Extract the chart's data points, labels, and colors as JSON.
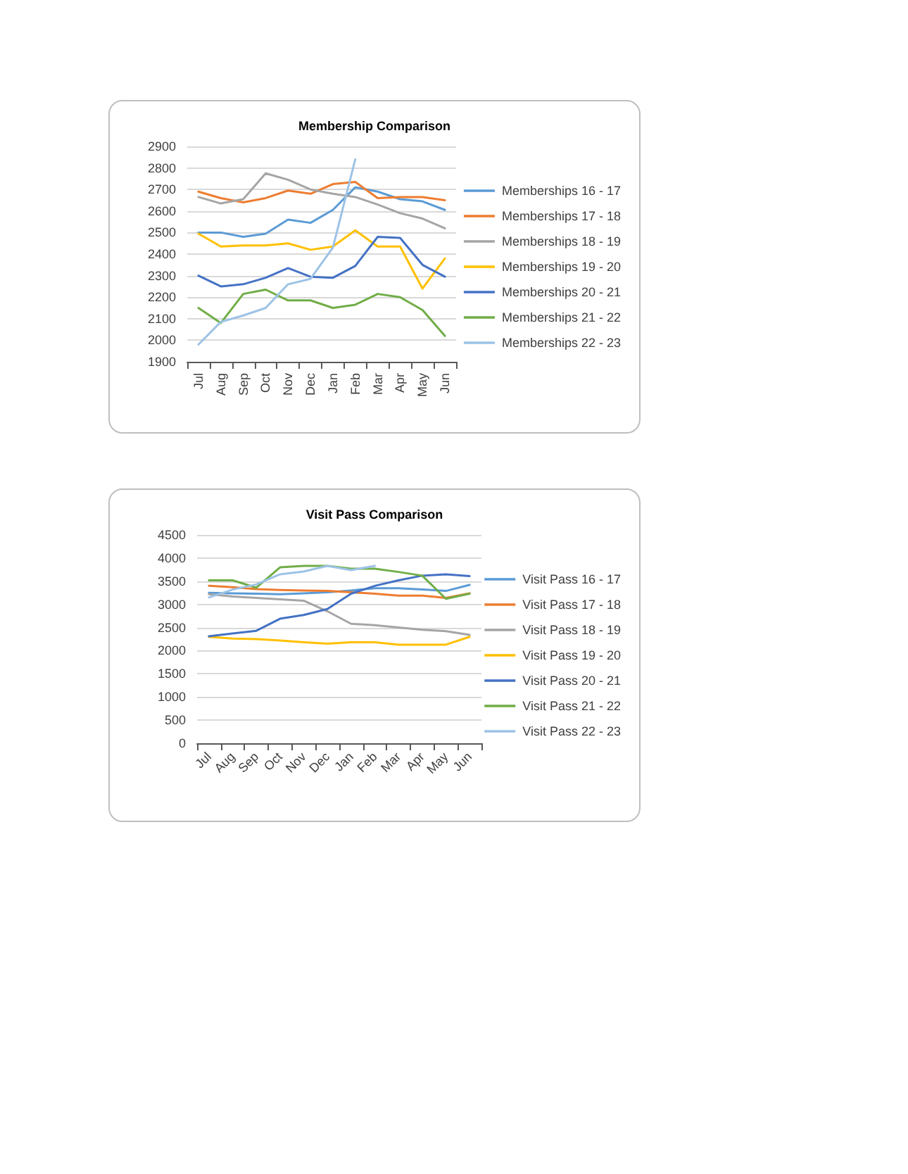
{
  "chart_data": [
    {
      "type": "line",
      "title": "Membership Comparison",
      "categories": [
        "Jul",
        "Aug",
        "Sep",
        "Oct",
        "Nov",
        "Dec",
        "Jan",
        "Feb",
        "Mar",
        "Apr",
        "May",
        "Jun"
      ],
      "ylim": [
        1900,
        2900
      ],
      "yticks": [
        1900,
        2000,
        2100,
        2200,
        2300,
        2400,
        2500,
        2600,
        2700,
        2800,
        2900
      ],
      "grid": "y",
      "legend": "right",
      "marker": "none",
      "series": [
        {
          "name": "Memberships 16 - 17",
          "color": "#5b9bd5",
          "values": [
            2500,
            2500,
            2480,
            2495,
            2560,
            2545,
            2605,
            2710,
            2690,
            2655,
            2645,
            2605
          ]
        },
        {
          "name": "Memberships 17 - 18",
          "color": "#ed7d31",
          "values": [
            2690,
            2660,
            2640,
            2660,
            2695,
            2680,
            2725,
            2735,
            2660,
            2665,
            2665,
            2650
          ]
        },
        {
          "name": "Memberships 18 - 19",
          "color": "#a5a5a5",
          "values": [
            2665,
            2635,
            2655,
            2775,
            2745,
            2700,
            2680,
            2665,
            2630,
            2590,
            2565,
            2520
          ]
        },
        {
          "name": "Memberships 19 - 20",
          "color": "#ffc000",
          "values": [
            2495,
            2435,
            2440,
            2440,
            2450,
            2420,
            2435,
            2510,
            2435,
            2435,
            2240,
            2380
          ]
        },
        {
          "name": "Memberships 20 - 21",
          "color": "#4472c4",
          "values": [
            2300,
            2250,
            2260,
            2290,
            2335,
            2295,
            2290,
            2345,
            2480,
            2475,
            2350,
            2295
          ]
        },
        {
          "name": "Memberships 21 - 22",
          "color": "#70ad47",
          "values": [
            2150,
            2080,
            2215,
            2235,
            2185,
            2185,
            2150,
            2165,
            2215,
            2200,
            2140,
            2020
          ]
        },
        {
          "name": "Memberships 22 - 23",
          "color": "#9dc3e6",
          "values": [
            1980,
            2085,
            2115,
            2150,
            2260,
            2285,
            2430,
            2840,
            null,
            null,
            null,
            null
          ]
        }
      ]
    },
    {
      "type": "line",
      "title": "Visit Pass Comparison",
      "categories": [
        "Jul",
        "Aug",
        "Sep",
        "Oct",
        "Nov",
        "Dec",
        "Jan",
        "Feb",
        "Mar",
        "Apr",
        "May",
        "Jun"
      ],
      "ylim": [
        0,
        4500
      ],
      "yticks": [
        0,
        500,
        1000,
        1500,
        2000,
        2500,
        3000,
        3500,
        4000,
        4500
      ],
      "grid": "y",
      "legend": "right",
      "marker": "none",
      "series": [
        {
          "name": "Visit Pass 16 - 17",
          "color": "#5b9bd5",
          "values": [
            3250,
            3240,
            3230,
            3220,
            3240,
            3260,
            3300,
            3350,
            3350,
            3320,
            3290,
            3420
          ]
        },
        {
          "name": "Visit Pass 17 - 18",
          "color": "#ed7d31",
          "values": [
            3400,
            3370,
            3330,
            3310,
            3300,
            3290,
            3260,
            3230,
            3190,
            3190,
            3140,
            3240
          ]
        },
        {
          "name": "Visit Pass 18 - 19",
          "color": "#a5a5a5",
          "values": [
            3220,
            3170,
            3140,
            3110,
            3080,
            2850,
            2580,
            2550,
            2500,
            2450,
            2420,
            2340
          ]
        },
        {
          "name": "Visit Pass 19 - 20",
          "color": "#ffc000",
          "values": [
            2300,
            2260,
            2250,
            2220,
            2180,
            2150,
            2180,
            2180,
            2130,
            2130,
            2130,
            2300
          ]
        },
        {
          "name": "Visit Pass 20 - 21",
          "color": "#4472c4",
          "values": [
            2310,
            2370,
            2430,
            2690,
            2770,
            2900,
            3230,
            3400,
            3520,
            3620,
            3650,
            3610
          ]
        },
        {
          "name": "Visit Pass 21 - 22",
          "color": "#70ad47",
          "values": [
            3520,
            3520,
            3360,
            3800,
            3830,
            3830,
            3770,
            3770,
            3700,
            3620,
            3120,
            3230
          ]
        },
        {
          "name": "Visit Pass 22 - 23",
          "color": "#9dc3e6",
          "values": [
            3150,
            3320,
            3430,
            3650,
            3710,
            3830,
            3740,
            3830,
            null,
            null,
            null,
            null
          ]
        }
      ]
    }
  ]
}
